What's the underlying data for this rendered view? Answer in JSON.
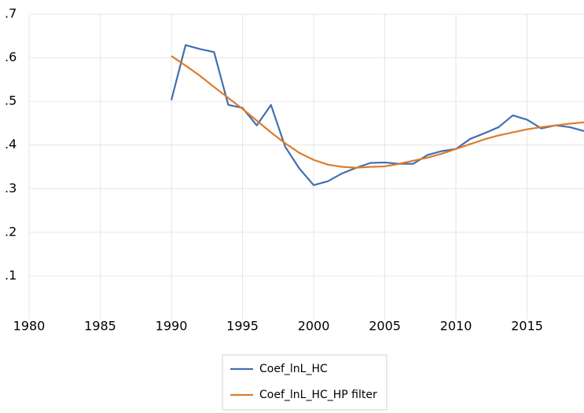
{
  "chart_data": {
    "type": "line",
    "x": [
      1990,
      1991,
      1992,
      1993,
      1994,
      1995,
      1996,
      1997,
      1998,
      1999,
      2000,
      2001,
      2002,
      2003,
      2004,
      2005,
      2006,
      2007,
      2008,
      2009,
      2010,
      2011,
      2012,
      2013,
      2014,
      2015,
      2016,
      2017,
      2018,
      2019
    ],
    "series": [
      {
        "name": "Coef_lnL_HC",
        "color": "#4170b0",
        "values": [
          0.503,
          0.629,
          0.62,
          0.613,
          0.492,
          0.485,
          0.445,
          0.492,
          0.396,
          0.346,
          0.308,
          0.317,
          0.335,
          0.348,
          0.359,
          0.36,
          0.357,
          0.357,
          0.377,
          0.386,
          0.391,
          0.414,
          0.427,
          0.441,
          0.468,
          0.458,
          0.438,
          0.445,
          0.441,
          0.432
        ]
      },
      {
        "name": "Coef_lnL_HC_HP filter",
        "color": "#dd7c2c",
        "values": [
          0.604,
          0.582,
          0.559,
          0.533,
          0.508,
          0.483,
          0.456,
          0.429,
          0.404,
          0.382,
          0.366,
          0.355,
          0.35,
          0.348,
          0.35,
          0.351,
          0.357,
          0.364,
          0.371,
          0.38,
          0.391,
          0.402,
          0.413,
          0.422,
          0.429,
          0.436,
          0.441,
          0.445,
          0.449,
          0.452
        ]
      }
    ],
    "xlim": [
      1980,
      2019
    ],
    "xticks": [
      1980,
      1985,
      1990,
      1995,
      2000,
      2005,
      2010,
      2015
    ],
    "ylim": [
      0,
      0.7
    ],
    "yticks": [
      {
        "value": 0.1,
        "label": ".1"
      },
      {
        "value": 0.2,
        "label": ".2"
      },
      {
        "value": 0.3,
        "label": ".3"
      },
      {
        "value": 0.4,
        "label": ".4"
      },
      {
        "value": 0.5,
        "label": ".5"
      },
      {
        "value": 0.6,
        "label": ".6"
      },
      {
        "value": 0.7,
        "label": ".7"
      }
    ],
    "grid": true,
    "legend": "bottom"
  }
}
